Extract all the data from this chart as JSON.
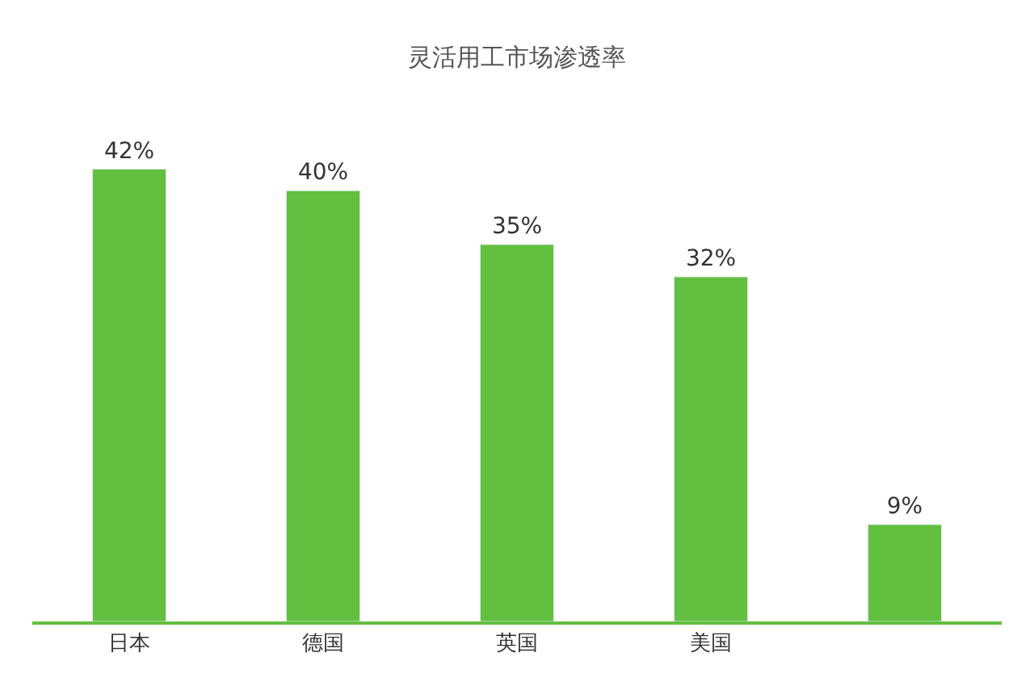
{
  "chart_data": {
    "type": "bar",
    "title": "灵活用工市场渗透率",
    "categories": [
      "日本",
      "德国",
      "英国",
      "美国",
      null
    ],
    "values": [
      42,
      40,
      35,
      32,
      9
    ],
    "value_labels": [
      "42%",
      "40%",
      "35%",
      "32%",
      "9%"
    ],
    "color": "#62bf3f",
    "tick_labels": "x"
  }
}
